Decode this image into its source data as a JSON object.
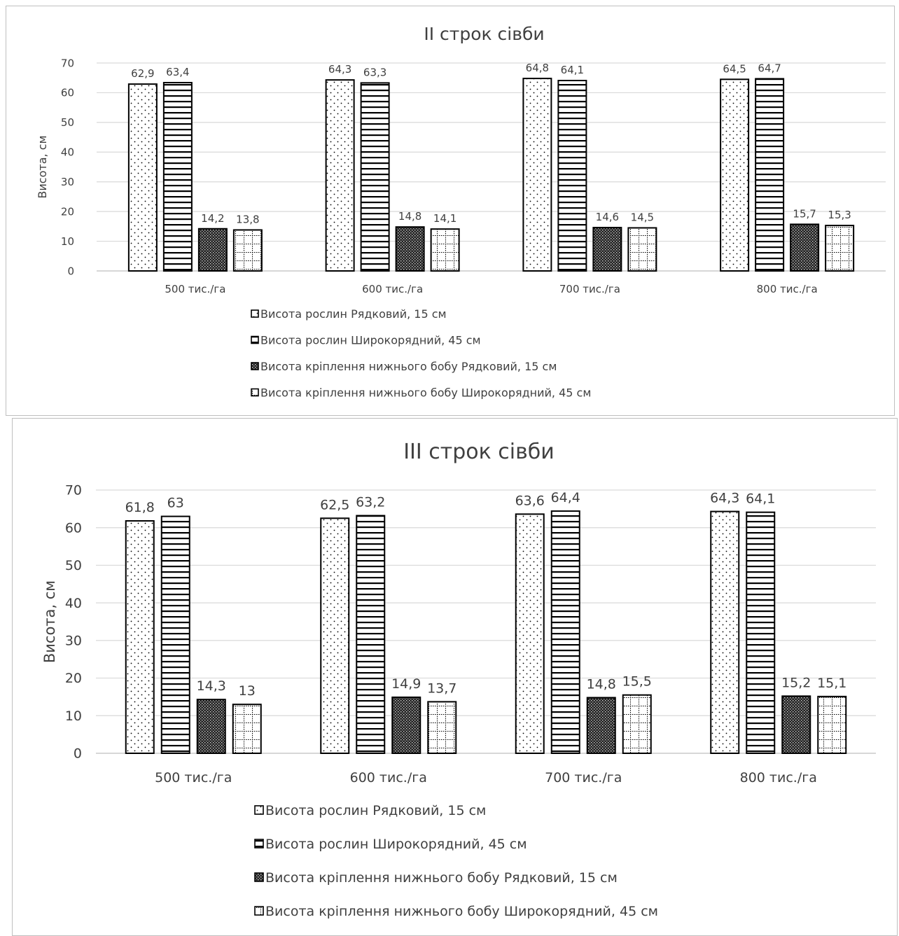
{
  "colors": {
    "ink": "#000000",
    "text": "#404040",
    "grid": "#d9d9d9",
    "border": "#bfbfbf",
    "fill": "#ffffff"
  },
  "series_patterns": [
    "dots",
    "horizontal-lines",
    "dense-crosshatch",
    "dotted-grid"
  ],
  "chart_data": [
    {
      "type": "bar",
      "title": "II строк сівби",
      "ylabel": "Висота, см",
      "xlabel": "",
      "ylim": [
        0,
        70
      ],
      "yticks": [
        0,
        10,
        20,
        30,
        40,
        50,
        60,
        70
      ],
      "grid": true,
      "legend_position": "bottom",
      "categories": [
        "500 тис./га",
        "600 тис./га",
        "700 тис./га",
        "800 тис./га"
      ],
      "series": [
        {
          "name": "Висота рослин Рядковий, 15 см",
          "values": [
            62.9,
            64.3,
            64.8,
            64.5
          ],
          "labels": [
            "62,9",
            "64,3",
            "64,8",
            "64,5"
          ]
        },
        {
          "name": "Висота рослин Широкорядний, 45 см",
          "values": [
            63.4,
            63.3,
            64.1,
            64.7
          ],
          "labels": [
            "63,4",
            "63,3",
            "64,1",
            "64,7"
          ]
        },
        {
          "name": "Висота кріплення нижнього бобу Рядковий, 15 см",
          "values": [
            14.2,
            14.8,
            14.6,
            15.7
          ],
          "labels": [
            "14,2",
            "14,8",
            "14,6",
            "15,7"
          ]
        },
        {
          "name": "Висота кріплення нижнього бобу Широкорядний, 45 см",
          "values": [
            13.8,
            14.1,
            14.5,
            15.3
          ],
          "labels": [
            "13,8",
            "14,1",
            "14,5",
            "15,3"
          ]
        }
      ]
    },
    {
      "type": "bar",
      "title": "III строк сівби",
      "ylabel": "Висота, см",
      "xlabel": "",
      "ylim": [
        0,
        70
      ],
      "yticks": [
        0,
        10,
        20,
        30,
        40,
        50,
        60,
        70
      ],
      "grid": true,
      "legend_position": "bottom",
      "categories": [
        "500 тис./га",
        "600 тис./га",
        "700 тис./га",
        "800 тис./га"
      ],
      "series": [
        {
          "name": "Висота рослин Рядковий, 15 см",
          "values": [
            61.8,
            62.5,
            63.6,
            64.3
          ],
          "labels": [
            "61,8",
            "62,5",
            "63,6",
            "64,3"
          ]
        },
        {
          "name": "Висота рослин Широкорядний, 45 см",
          "values": [
            63,
            63.2,
            64.4,
            64.1
          ],
          "labels": [
            "63",
            "63,2",
            "64,4",
            "64,1"
          ]
        },
        {
          "name": "Висота кріплення нижнього бобу Рядковий, 15 см",
          "values": [
            14.3,
            14.9,
            14.8,
            15.2
          ],
          "labels": [
            "14,3",
            "14,9",
            "14,8",
            "15,2"
          ]
        },
        {
          "name": "Висота кріплення нижнього бобу Широкорядний, 45 см",
          "values": [
            13,
            13.7,
            15.5,
            15.1
          ],
          "labels": [
            "13",
            "13,7",
            "15,5",
            "15,1"
          ]
        }
      ]
    }
  ]
}
